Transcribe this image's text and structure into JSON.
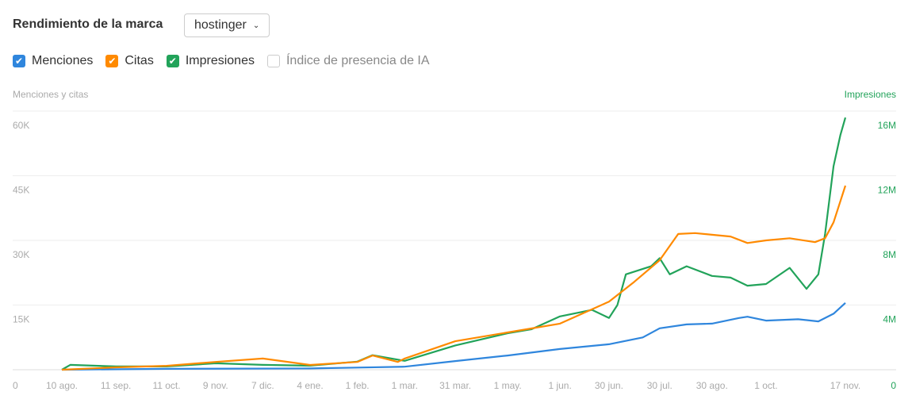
{
  "header": {
    "title": "Rendimiento de la marca",
    "brand_select": "hostinger"
  },
  "legend": [
    {
      "label": "Menciones",
      "checked": true,
      "color": "#2f86dd"
    },
    {
      "label": "Citas",
      "checked": true,
      "color": "#ff8a00"
    },
    {
      "label": "Impresiones",
      "checked": true,
      "color": "#22a35a"
    },
    {
      "label": "Índice de presencia de IA",
      "checked": false,
      "color": "#cccccc"
    }
  ],
  "chart_data": {
    "type": "line",
    "ylabel_left": "Menciones y citas",
    "ylabel_right": "Impresiones",
    "ylim_left": [
      0,
      60000
    ],
    "ylim_right": [
      0,
      16000000
    ],
    "yticks_left": [
      "0",
      "15K",
      "30K",
      "45K",
      "60K"
    ],
    "yticks_right": [
      "0",
      "4M",
      "8M",
      "12M",
      "16M"
    ],
    "xlim": [
      "2024-08-10",
      "2025-11-17"
    ],
    "xticks": [
      {
        "date": "2024-08-10",
        "label": "10 ago."
      },
      {
        "date": "2024-09-11",
        "label": "11 sep."
      },
      {
        "date": "2024-10-11",
        "label": "11 oct."
      },
      {
        "date": "2024-11-09",
        "label": "9 nov."
      },
      {
        "date": "2024-12-07",
        "label": "7 dic."
      },
      {
        "date": "2025-01-04",
        "label": "4 ene."
      },
      {
        "date": "2025-02-01",
        "label": "1 feb."
      },
      {
        "date": "2025-03-01",
        "label": "1 mar."
      },
      {
        "date": "2025-03-31",
        "label": "31 mar."
      },
      {
        "date": "2025-05-01",
        "label": "1 may."
      },
      {
        "date": "2025-06-01",
        "label": "1 jun."
      },
      {
        "date": "2025-06-30",
        "label": "30 jun."
      },
      {
        "date": "2025-07-30",
        "label": "30 jul."
      },
      {
        "date": "2025-08-30",
        "label": "30 ago."
      },
      {
        "date": "2025-10-01",
        "label": "1 oct."
      },
      {
        "date": "2025-11-17",
        "label": "17 nov."
      }
    ],
    "grid": true,
    "series": [
      {
        "name": "Menciones",
        "axis": "left",
        "color": "#2f86dd",
        "points": [
          [
            "2024-08-10",
            0
          ],
          [
            "2024-10-11",
            200
          ],
          [
            "2025-01-04",
            300
          ],
          [
            "2025-02-01",
            500
          ],
          [
            "2025-03-01",
            700
          ],
          [
            "2025-03-31",
            2000
          ],
          [
            "2025-05-01",
            3300
          ],
          [
            "2025-06-01",
            4800
          ],
          [
            "2025-06-30",
            5900
          ],
          [
            "2025-07-20",
            7500
          ],
          [
            "2025-07-30",
            9600
          ],
          [
            "2025-08-15",
            10500
          ],
          [
            "2025-08-30",
            10700
          ],
          [
            "2025-09-15",
            12000
          ],
          [
            "2025-09-20",
            12300
          ],
          [
            "2025-10-01",
            11400
          ],
          [
            "2025-10-20",
            11700
          ],
          [
            "2025-11-01",
            11200
          ],
          [
            "2025-11-10",
            13000
          ],
          [
            "2025-11-17",
            15500
          ]
        ]
      },
      {
        "name": "Citas",
        "axis": "left",
        "color": "#ff8a00",
        "points": [
          [
            "2024-08-10",
            0
          ],
          [
            "2024-09-11",
            550
          ],
          [
            "2024-10-11",
            900
          ],
          [
            "2024-11-09",
            1800
          ],
          [
            "2024-12-07",
            2600
          ],
          [
            "2025-01-04",
            1100
          ],
          [
            "2025-02-01",
            1800
          ],
          [
            "2025-02-10",
            3300
          ],
          [
            "2025-02-25",
            1800
          ],
          [
            "2025-03-01",
            2600
          ],
          [
            "2025-03-31",
            6600
          ],
          [
            "2025-05-01",
            8650
          ],
          [
            "2025-06-01",
            10700
          ],
          [
            "2025-06-30",
            15800
          ],
          [
            "2025-07-15",
            20400
          ],
          [
            "2025-07-30",
            25400
          ],
          [
            "2025-08-10",
            31500
          ],
          [
            "2025-08-20",
            31700
          ],
          [
            "2025-08-30",
            31300
          ],
          [
            "2025-09-10",
            30900
          ],
          [
            "2025-09-20",
            29400
          ],
          [
            "2025-10-01",
            30000
          ],
          [
            "2025-10-15",
            30500
          ],
          [
            "2025-10-30",
            29600
          ],
          [
            "2025-11-05",
            30500
          ],
          [
            "2025-11-10",
            34200
          ],
          [
            "2025-11-17",
            42700
          ]
        ]
      },
      {
        "name": "Impresiones",
        "axis": "right",
        "color": "#22a35a",
        "points": [
          [
            "2024-08-10",
            0
          ],
          [
            "2024-08-15",
            300000
          ],
          [
            "2024-09-11",
            200000
          ],
          [
            "2024-10-11",
            200000
          ],
          [
            "2024-11-09",
            400000
          ],
          [
            "2024-12-07",
            300000
          ],
          [
            "2025-01-04",
            250000
          ],
          [
            "2025-02-01",
            500000
          ],
          [
            "2025-02-10",
            900000
          ],
          [
            "2025-03-01",
            550000
          ],
          [
            "2025-03-31",
            1500000
          ],
          [
            "2025-05-01",
            2260000
          ],
          [
            "2025-05-15",
            2500000
          ],
          [
            "2025-06-01",
            3300000
          ],
          [
            "2025-06-20",
            3700000
          ],
          [
            "2025-06-30",
            3200000
          ],
          [
            "2025-07-05",
            4000000
          ],
          [
            "2025-07-10",
            5900000
          ],
          [
            "2025-07-25",
            6400000
          ],
          [
            "2025-07-30",
            6900000
          ],
          [
            "2025-08-05",
            5900000
          ],
          [
            "2025-08-15",
            6400000
          ],
          [
            "2025-08-30",
            5800000
          ],
          [
            "2025-09-10",
            5700000
          ],
          [
            "2025-09-20",
            5200000
          ],
          [
            "2025-10-01",
            5300000
          ],
          [
            "2025-10-15",
            6300000
          ],
          [
            "2025-10-25",
            5000000
          ],
          [
            "2025-11-01",
            5900000
          ],
          [
            "2025-11-05",
            8400000
          ],
          [
            "2025-11-10",
            12600000
          ],
          [
            "2025-11-14",
            14500000
          ],
          [
            "2025-11-17",
            15600000
          ]
        ]
      }
    ]
  }
}
